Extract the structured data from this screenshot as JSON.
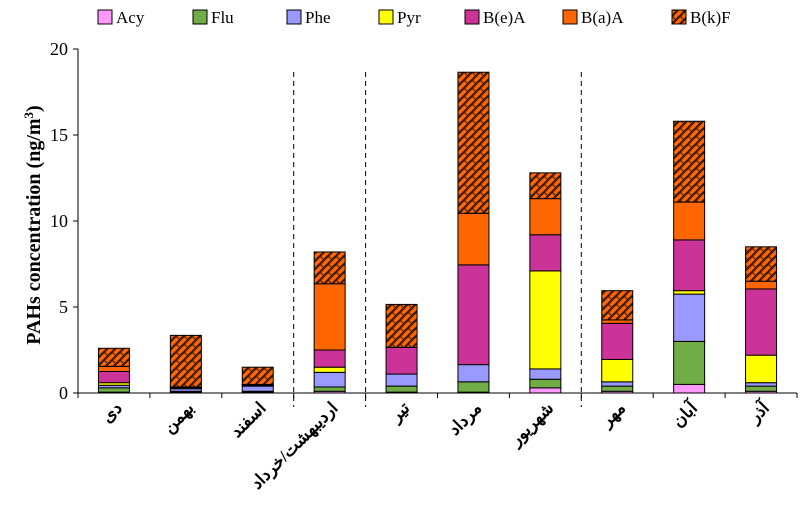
{
  "chart_data": {
    "type": "bar",
    "stacked": true,
    "title": "",
    "ylabel": "PAHs concentration (ng/m",
    "ylabel_sup": "3",
    "ylabel_close": ")",
    "xlabel": "",
    "ylim": [
      0,
      20
    ],
    "yticks": [
      0,
      5,
      10,
      15,
      20
    ],
    "grid": false,
    "legend_position": "top",
    "categories": [
      "دی",
      "بهمن",
      "اسفند",
      "اردیبهشت/خرداد",
      "تیر",
      "مرداد",
      "شهریور",
      "مهر",
      "آبان",
      "آذر"
    ],
    "separators_after_index": [
      2,
      3,
      6
    ],
    "series": [
      {
        "name": "Acy",
        "color": "#ff99ff",
        "pattern": "none",
        "values": [
          0.05,
          0.05,
          0.05,
          0.1,
          0.05,
          0.05,
          0.3,
          0.1,
          0.5,
          0.1
        ]
      },
      {
        "name": "Flu",
        "color": "#70ad47",
        "pattern": "none",
        "values": [
          0.25,
          0.05,
          0.05,
          0.25,
          0.35,
          0.6,
          0.5,
          0.3,
          2.5,
          0.3
        ]
      },
      {
        "name": "Phe",
        "color": "#9999ff",
        "pattern": "none",
        "values": [
          0.15,
          0.15,
          0.3,
          0.85,
          0.7,
          1.0,
          0.6,
          0.25,
          2.75,
          0.2
        ]
      },
      {
        "name": "Pyr",
        "color": "#ffff00",
        "pattern": "none",
        "values": [
          0.15,
          0.0,
          0.0,
          0.3,
          0.0,
          0.0,
          5.7,
          1.3,
          0.2,
          1.6
        ]
      },
      {
        "name": "B(e)A",
        "color": "#cc3399",
        "pattern": "none",
        "values": [
          0.65,
          0.05,
          0.05,
          1.0,
          1.55,
          5.8,
          2.1,
          2.1,
          2.95,
          3.85
        ]
      },
      {
        "name": "B(a)A",
        "color": "#ff6600",
        "pattern": "none",
        "values": [
          0.3,
          0.05,
          0.05,
          3.85,
          0.0,
          3.0,
          2.1,
          0.2,
          2.2,
          0.45
        ]
      },
      {
        "name": "B(k)F",
        "color": "#ff6600",
        "pattern": "hatch",
        "values": [
          1.05,
          3.0,
          1.0,
          1.85,
          2.5,
          8.2,
          1.5,
          1.7,
          4.7,
          2.0
        ]
      }
    ]
  }
}
